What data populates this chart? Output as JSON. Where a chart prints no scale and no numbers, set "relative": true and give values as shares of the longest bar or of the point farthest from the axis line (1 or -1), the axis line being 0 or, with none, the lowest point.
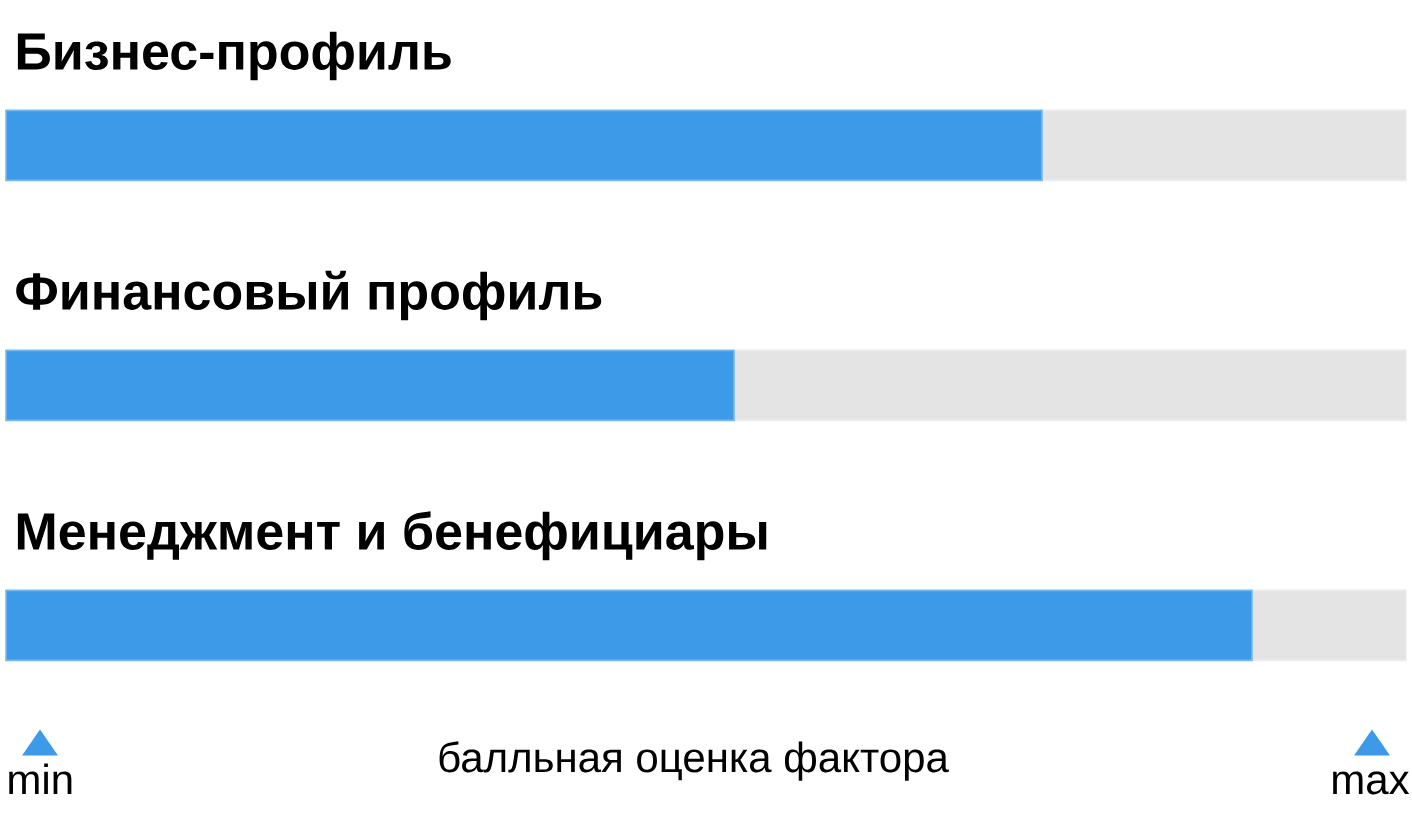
{
  "chart_data": {
    "type": "bar",
    "orientation": "horizontal",
    "stacked": true,
    "relative": true,
    "categories": [
      "Бизнес-профиль",
      "Финансовый профиль",
      "Менеджмент и бенефициары"
    ],
    "series": [
      {
        "color": "#3d9ae8",
        "values": [
          0.74,
          0.52,
          0.89
        ]
      },
      {
        "color": "#e4e4e4",
        "values": [
          0.26,
          0.48,
          0.11
        ]
      }
    ],
    "xlabel": "балльная оценка фактора",
    "annotations": [
      "min",
      "max"
    ]
  }
}
